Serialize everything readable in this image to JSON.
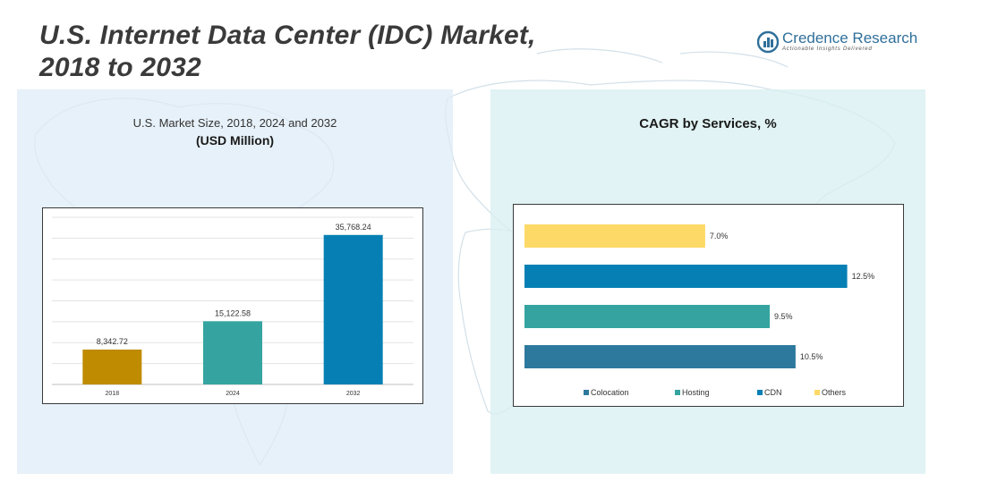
{
  "title": {
    "line1": "U.S. Internet Data Center (IDC) Market,",
    "line2": "2018 to 2032"
  },
  "logo": {
    "name": "Credence Research",
    "tagline": "Actionable Insights Delivered"
  },
  "colors": {
    "year2018": "#bf8b00",
    "year2024": "#35a4a0",
    "year2032": "#0680b4",
    "colocation": "#2d799e",
    "hosting": "#35a4a0",
    "cdn": "#0680b4",
    "others": "#fdd967"
  },
  "left_panel": {
    "subtitle": "U.S. Market Size, 2018, 2024 and 2032",
    "unit": "(USD Million)"
  },
  "right_panel": {
    "title": "CAGR by Services, %"
  },
  "chart_data": [
    {
      "type": "bar",
      "title": "U.S. Market Size, 2018, 2024 and 2032 (USD Million)",
      "categories": [
        "2018",
        "2024",
        "2032"
      ],
      "values": [
        8342.72,
        15122.58,
        35768.24
      ],
      "labels": [
        "8,342.72",
        "15,122.58",
        "35,768.24"
      ],
      "ylim": [
        0,
        40000
      ],
      "grid": true,
      "xlabel": "",
      "ylabel": ""
    },
    {
      "type": "bar",
      "orientation": "horizontal",
      "title": "CAGR by Services, %",
      "categories": [
        "Others",
        "CDN",
        "Hosting",
        "Colocation"
      ],
      "values": [
        7.0,
        12.5,
        9.5,
        10.5
      ],
      "labels": [
        "7.0%",
        "12.5%",
        "9.5%",
        "10.5%"
      ],
      "xlim": [
        0,
        13
      ],
      "legend": [
        "Colocation",
        "Hosting",
        "CDN",
        "Others"
      ],
      "legend_position": "bottom"
    }
  ]
}
